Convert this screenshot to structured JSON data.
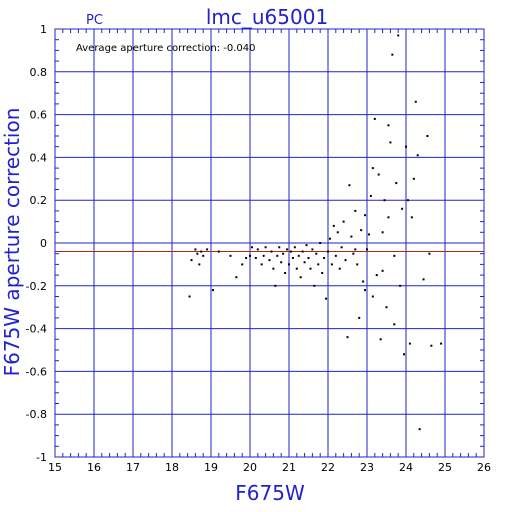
{
  "chart_data": {
    "type": "scatter",
    "title": "lmc_u65001",
    "camera_label": "PC",
    "xlabel": "F675W",
    "ylabel": "F675W aperture correction",
    "annotation": "Average aperture correction: -0.040",
    "xlim": [
      15,
      26
    ],
    "ylim": [
      -1,
      1
    ],
    "x_ticks": [
      "15",
      "16",
      "17",
      "18",
      "19",
      "20",
      "21",
      "22",
      "23",
      "24",
      "25",
      "26"
    ],
    "y_ticks": [
      "1",
      "0.8",
      "0.6",
      "0.4",
      "0.2",
      "0",
      "-0.2",
      "-0.4",
      "-0.6",
      "-0.8",
      "-1"
    ],
    "grid": true,
    "reference_line": -0.04,
    "colors": {
      "axis": "#2222cc",
      "grid": "#2222cc",
      "points": "#000000",
      "reference_line": "#b22222"
    },
    "points": [
      [
        18.45,
        -0.25
      ],
      [
        18.5,
        -0.08
      ],
      [
        18.6,
        -0.03
      ],
      [
        18.65,
        -0.05
      ],
      [
        18.7,
        -0.1
      ],
      [
        18.75,
        -0.04
      ],
      [
        18.8,
        -0.06
      ],
      [
        18.9,
        -0.03
      ],
      [
        19.05,
        -0.22
      ],
      [
        19.2,
        -0.04
      ],
      [
        19.5,
        -0.06
      ],
      [
        19.65,
        -0.16
      ],
      [
        19.8,
        -0.1
      ],
      [
        19.9,
        -0.07
      ],
      [
        20.0,
        -0.06
      ],
      [
        20.05,
        -0.02
      ],
      [
        20.15,
        -0.07
      ],
      [
        20.2,
        -0.03
      ],
      [
        20.3,
        -0.1
      ],
      [
        20.35,
        -0.06
      ],
      [
        20.4,
        -0.02
      ],
      [
        20.5,
        -0.08
      ],
      [
        20.55,
        -0.04
      ],
      [
        20.6,
        -0.12
      ],
      [
        20.65,
        -0.2
      ],
      [
        20.7,
        -0.06
      ],
      [
        20.75,
        -0.02
      ],
      [
        20.8,
        -0.09
      ],
      [
        20.85,
        -0.05
      ],
      [
        20.9,
        -0.14
      ],
      [
        20.95,
        -0.03
      ],
      [
        21.0,
        -0.1
      ],
      [
        21.05,
        -0.04
      ],
      [
        21.1,
        -0.07
      ],
      [
        21.15,
        -0.02
      ],
      [
        21.2,
        -0.12
      ],
      [
        21.25,
        -0.06
      ],
      [
        21.3,
        -0.16
      ],
      [
        21.35,
        -0.04
      ],
      [
        21.4,
        -0.09
      ],
      [
        21.45,
        -0.01
      ],
      [
        21.5,
        -0.07
      ],
      [
        21.55,
        -0.12
      ],
      [
        21.6,
        -0.03
      ],
      [
        21.65,
        -0.2
      ],
      [
        21.7,
        -0.05
      ],
      [
        21.75,
        -0.1
      ],
      [
        21.8,
        0.0
      ],
      [
        21.85,
        -0.14
      ],
      [
        21.9,
        -0.07
      ],
      [
        21.95,
        -0.26
      ],
      [
        22.0,
        -0.04
      ],
      [
        22.05,
        0.02
      ],
      [
        22.1,
        -0.1
      ],
      [
        22.15,
        0.08
      ],
      [
        22.2,
        -0.06
      ],
      [
        22.25,
        0.05
      ],
      [
        22.3,
        -0.12
      ],
      [
        22.35,
        -0.02
      ],
      [
        22.4,
        0.1
      ],
      [
        22.45,
        -0.08
      ],
      [
        22.5,
        -0.44
      ],
      [
        22.55,
        0.27
      ],
      [
        22.6,
        0.03
      ],
      [
        22.65,
        -0.05
      ],
      [
        22.7,
        0.15
      ],
      [
        22.75,
        -0.1
      ],
      [
        22.8,
        -0.35
      ],
      [
        22.85,
        0.06
      ],
      [
        22.9,
        -0.18
      ],
      [
        22.95,
        0.13
      ],
      [
        23.0,
        -0.03
      ],
      [
        23.05,
        0.04
      ],
      [
        23.1,
        0.22
      ],
      [
        23.15,
        -0.25
      ],
      [
        23.2,
        0.58
      ],
      [
        23.25,
        -0.15
      ],
      [
        23.3,
        0.32
      ],
      [
        23.35,
        -0.45
      ],
      [
        23.4,
        0.05
      ],
      [
        23.45,
        0.2
      ],
      [
        23.5,
        -0.3
      ],
      [
        23.55,
        0.55
      ],
      [
        23.6,
        0.47
      ],
      [
        23.65,
        0.88
      ],
      [
        23.7,
        -0.38
      ],
      [
        23.75,
        0.28
      ],
      [
        23.8,
        0.97
      ],
      [
        23.85,
        -0.2
      ],
      [
        23.9,
        0.16
      ],
      [
        23.95,
        -0.52
      ],
      [
        24.0,
        0.45
      ],
      [
        24.05,
        0.2
      ],
      [
        24.1,
        -0.47
      ],
      [
        24.15,
        0.12
      ],
      [
        24.2,
        0.3
      ],
      [
        24.25,
        0.66
      ],
      [
        24.3,
        0.41
      ],
      [
        24.35,
        -0.87
      ],
      [
        24.45,
        -0.17
      ],
      [
        24.55,
        0.5
      ],
      [
        24.6,
        -0.05
      ],
      [
        24.65,
        -0.48
      ],
      [
        24.9,
        -0.47
      ],
      [
        23.7,
        -0.06
      ],
      [
        23.4,
        -0.13
      ],
      [
        22.95,
        -0.22
      ],
      [
        23.55,
        0.12
      ],
      [
        22.7,
        -0.03
      ],
      [
        23.15,
        0.35
      ]
    ]
  }
}
